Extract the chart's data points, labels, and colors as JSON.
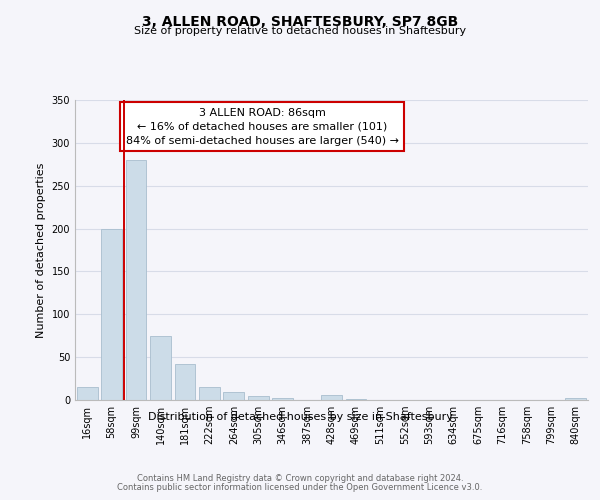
{
  "title": "3, ALLEN ROAD, SHAFTESBURY, SP7 8GB",
  "subtitle": "Size of property relative to detached houses in Shaftesbury",
  "xlabel": "Distribution of detached houses by size in Shaftesbury",
  "ylabel": "Number of detached properties",
  "bin_labels": [
    "16sqm",
    "58sqm",
    "99sqm",
    "140sqm",
    "181sqm",
    "222sqm",
    "264sqm",
    "305sqm",
    "346sqm",
    "387sqm",
    "428sqm",
    "469sqm",
    "511sqm",
    "552sqm",
    "593sqm",
    "634sqm",
    "675sqm",
    "716sqm",
    "758sqm",
    "799sqm",
    "840sqm"
  ],
  "bar_heights": [
    15,
    200,
    280,
    75,
    42,
    15,
    9,
    5,
    2,
    0,
    6,
    1,
    0,
    0,
    0,
    0,
    0,
    0,
    0,
    0,
    2
  ],
  "bar_color": "#ccdce8",
  "bar_edge_color": "#a8bece",
  "marker_label": "3 ALLEN ROAD: 86sqm",
  "annotation_line1": "← 16% of detached houses are smaller (101)",
  "annotation_line2": "84% of semi-detached houses are larger (540) →",
  "vline_color": "#cc0000",
  "box_edge_color": "#cc0000",
  "vline_x": 1.52,
  "ylim": [
    0,
    350
  ],
  "yticks": [
    0,
    50,
    100,
    150,
    200,
    250,
    300,
    350
  ],
  "footer_line1": "Contains HM Land Registry data © Crown copyright and database right 2024.",
  "footer_line2": "Contains public sector information licensed under the Open Government Licence v3.0.",
  "bg_color": "#f5f5fa",
  "grid_color": "#d8dce8",
  "title_fontsize": 10,
  "subtitle_fontsize": 8,
  "ylabel_fontsize": 8,
  "xlabel_fontsize": 8,
  "tick_fontsize": 7,
  "ann_fontsize": 8,
  "footer_fontsize": 6
}
